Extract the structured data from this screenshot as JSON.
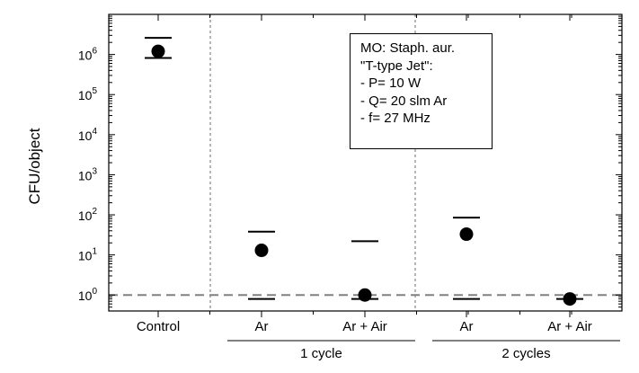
{
  "chart_data": {
    "type": "scatter",
    "ylabel": "CFU/object",
    "yscale": "log",
    "ylim": [
      0.4,
      10000000
    ],
    "y_ticks": [
      1,
      10,
      100,
      1000,
      10000,
      100000,
      1000000
    ],
    "y_tick_labels": [
      {
        "base": "10",
        "exp": "0"
      },
      {
        "base": "10",
        "exp": "1"
      },
      {
        "base": "10",
        "exp": "2"
      },
      {
        "base": "10",
        "exp": "3"
      },
      {
        "base": "10",
        "exp": "4"
      },
      {
        "base": "10",
        "exp": "5"
      },
      {
        "base": "10",
        "exp": "6"
      }
    ],
    "categories": [
      "Control",
      "Ar",
      "Ar + Air",
      "Ar",
      "Ar + Air"
    ],
    "groups": [
      {
        "label": "1 cycle",
        "categories": [
          1,
          2
        ]
      },
      {
        "label": "2 cycles",
        "categories": [
          3,
          4
        ]
      }
    ],
    "points": [
      {
        "value": 1200000,
        "upper": 2600000,
        "lower": 820000
      },
      {
        "value": 13,
        "upper": 38,
        "lower": 0.8
      },
      {
        "value": 1.0,
        "upper": 22,
        "lower": 0.8
      },
      {
        "value": 33,
        "upper": 85,
        "lower": 0.8
      },
      {
        "value": 0.8,
        "upper": null,
        "lower": 0.8
      }
    ],
    "reference_line": {
      "value": 1,
      "style": "dashed",
      "color": "#808080"
    },
    "color": "#000000",
    "legend_placement": "top-center",
    "annotation": [
      "MO: Staph. aur.",
      "\"T-type Jet\":",
      "- P= 10 W",
      "- Q= 20 slm Ar",
      "- f= 27 MHz"
    ]
  }
}
